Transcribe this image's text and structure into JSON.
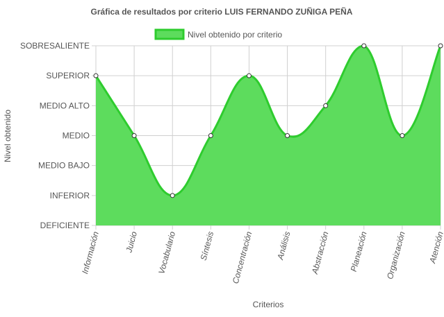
{
  "colors": {
    "line": "#2ecc2e",
    "fill": "#5ddc5d",
    "grid": "#d0d0d0",
    "text": "#555555",
    "point_fill": "#ffffff",
    "point_stroke": "#333333"
  },
  "chart_data": {
    "type": "area",
    "title": "Gráfica de resultados por criterio LUIS FERNANDO ZUÑIGA PEÑA",
    "xlabel": "Criterios",
    "ylabel": "Nivel obtenido",
    "legend_position": "top",
    "grid": true,
    "levels": [
      "DEFICIENTE",
      "INFERIOR",
      "MEDIO BAJO",
      "MEDIO",
      "MEDIO ALTO",
      "SUPERIOR",
      "SOBRESALIENTE"
    ],
    "ylim": [
      0,
      6
    ],
    "categories": [
      "Información",
      "Juicio",
      "Vocabulario",
      "Síntesis",
      "Concentración",
      "Análisis",
      "Abstracción",
      "Planeación",
      "Organización",
      "Atención"
    ],
    "series": [
      {
        "name": "Nivel obtenido por criterio",
        "values": [
          5,
          3,
          1,
          3,
          5,
          3,
          4,
          6,
          3,
          6
        ]
      }
    ]
  }
}
